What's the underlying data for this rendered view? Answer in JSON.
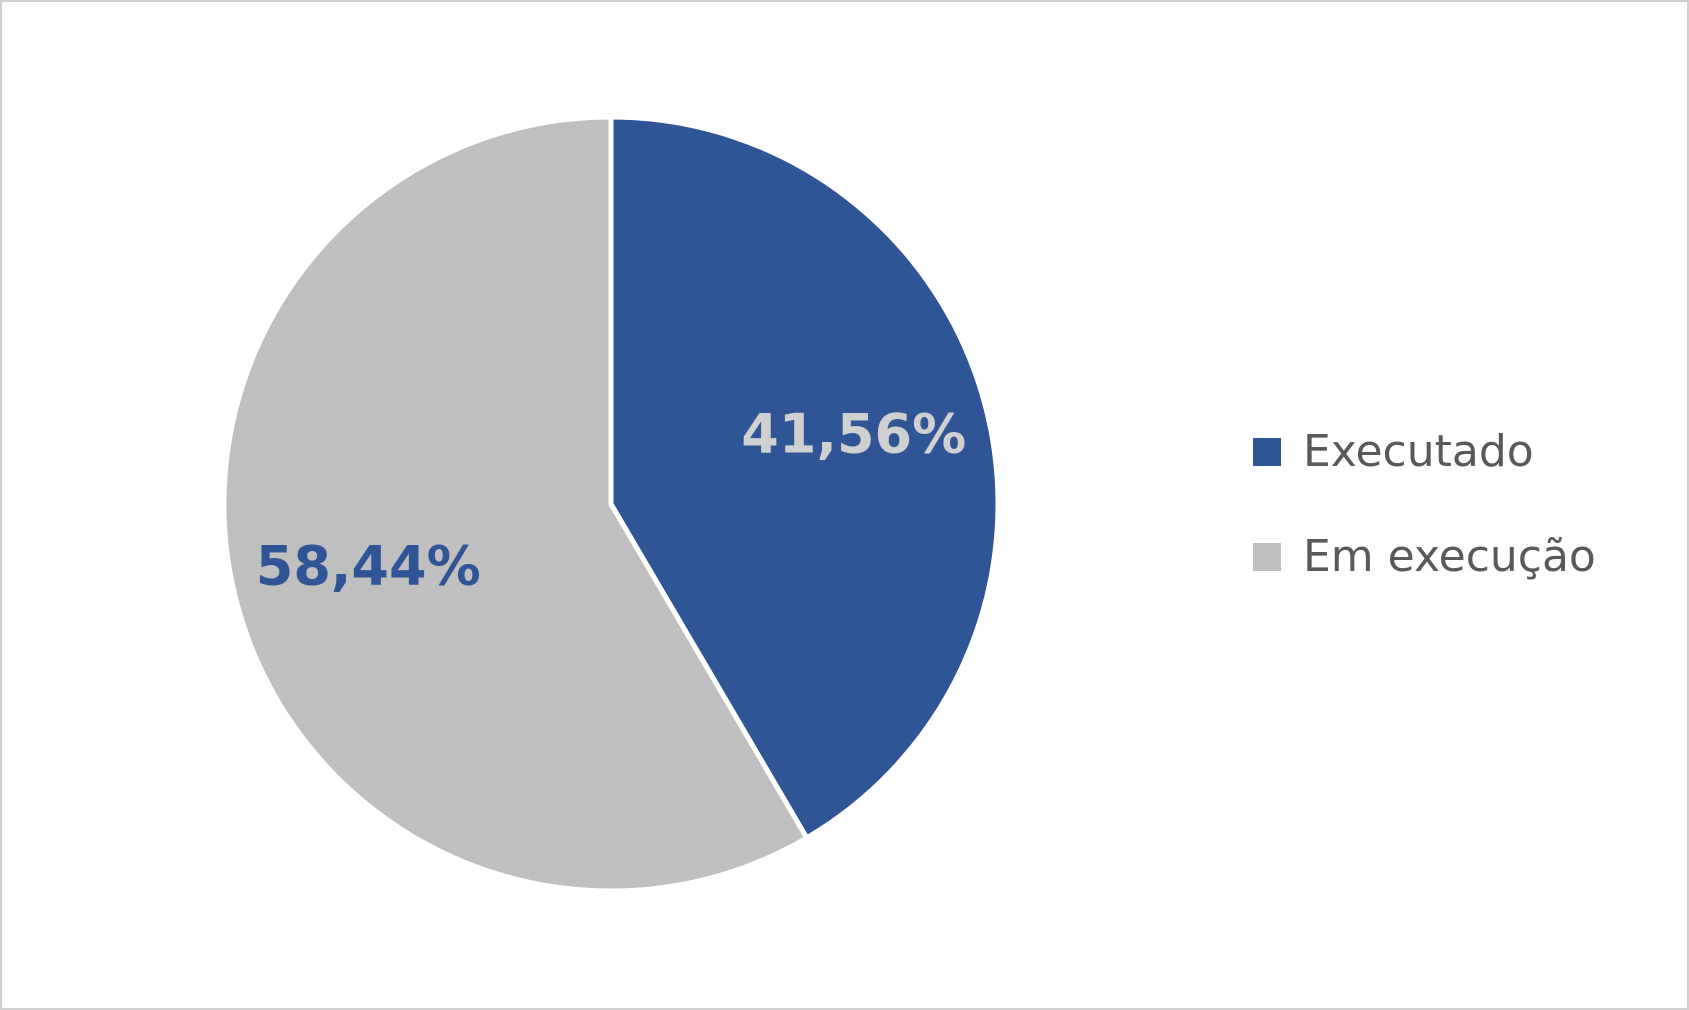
{
  "chart_data": {
    "type": "pie",
    "categories": [
      "Executado",
      "Em execução"
    ],
    "values": [
      41.56,
      58.44
    ],
    "value_labels": [
      "41,56%",
      "58,44%"
    ],
    "colors": [
      "#2F5597",
      "#BFBFBF"
    ],
    "label_colors": [
      "#D0D0D0",
      "#2F5597"
    ],
    "legend": "right"
  }
}
